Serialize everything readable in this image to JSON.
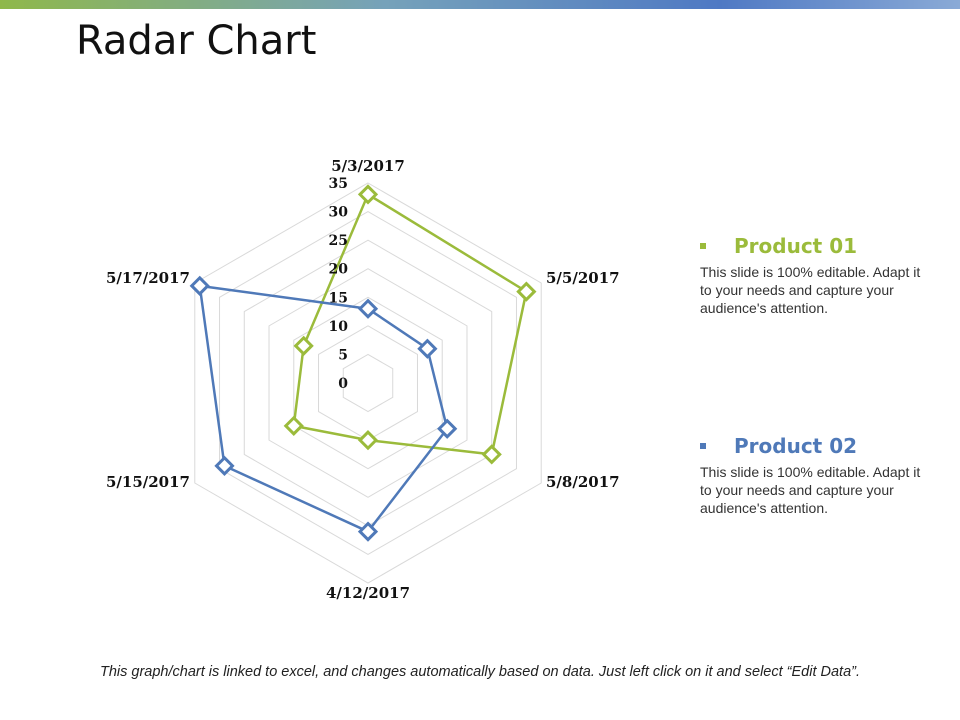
{
  "title": "Radar Chart",
  "chart_data": {
    "type": "radar",
    "categories": [
      "5/3/2017",
      "5/5/2017",
      "5/8/2017",
      "4/12/2017",
      "5/15/2017",
      "5/17/2017"
    ],
    "series": [
      {
        "name": "Product 01",
        "color": "#9bbb3b",
        "values": [
          33,
          32,
          25,
          10,
          15,
          13
        ]
      },
      {
        "name": "Product 02",
        "color": "#4f79b8",
        "values": [
          13,
          12,
          16,
          26,
          29,
          34
        ]
      }
    ],
    "rlim": [
      0,
      35
    ],
    "rticks": [
      "0",
      "5",
      "10",
      "15",
      "20",
      "25",
      "30",
      "35"
    ],
    "grid": true
  },
  "legend": [
    {
      "name": "Product 01",
      "color": "#9bbb3b",
      "description": "This slide is 100% editable. Adapt it to your needs and capture your audience's attention."
    },
    {
      "name": "Product 02",
      "color": "#4f79b8",
      "description": "This slide is 100% editable. Adapt it to your needs and capture your audience's attention."
    }
  ],
  "footer": "This graph/chart is linked to excel, and changes automatically based on data. Just left click on it and select “Edit Data”."
}
